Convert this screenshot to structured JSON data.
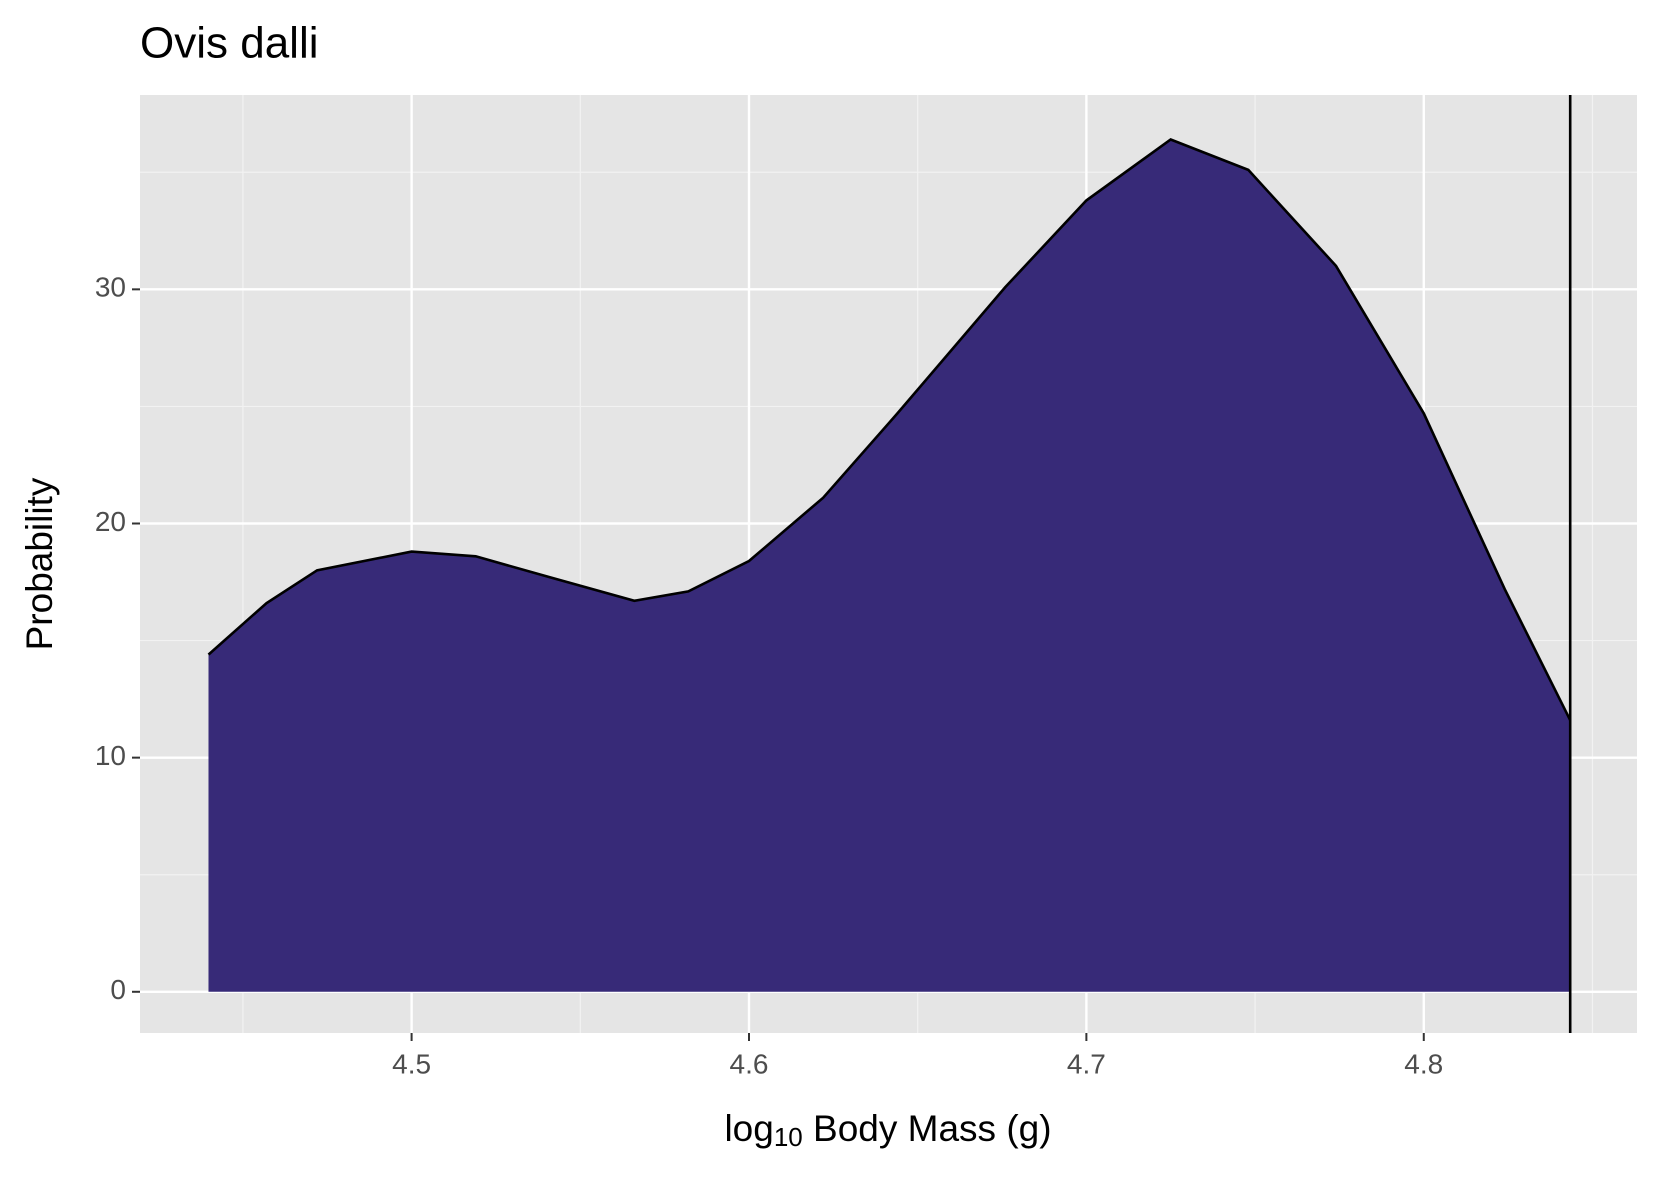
{
  "chart_data": {
    "type": "area",
    "title": "Ovis dalli",
    "x_label": {
      "base": "log",
      "subscript": "10",
      "rest": " Body Mass (g)"
    },
    "y_label": "Probability",
    "x": [
      4.4398,
      4.457,
      4.472,
      4.5,
      4.519,
      4.541,
      4.566,
      4.582,
      4.6,
      4.622,
      4.644,
      4.676,
      4.7,
      4.725,
      4.748,
      4.774,
      4.8,
      4.824,
      4.8434
    ],
    "series": [
      {
        "color": "#372a78",
        "values": [
          14.4,
          16.6,
          18.0,
          18.8,
          18.6,
          17.7,
          16.7,
          17.1,
          18.4,
          21.1,
          24.7,
          30.1,
          33.8,
          36.4,
          35.1,
          31.0,
          24.7,
          17.2,
          11.6
        ]
      }
    ],
    "vline": 4.8434,
    "xlim": [
      4.4195,
      4.8632
    ],
    "ylim": [
      -1.76,
      38.3
    ],
    "xticks": [
      4.5,
      4.6,
      4.7,
      4.8
    ],
    "yticks": [
      0,
      10,
      20,
      30
    ],
    "x_minor_ticks": [
      4.45,
      4.55,
      4.65,
      4.75,
      4.85
    ],
    "y_minor_ticks": [
      5,
      15,
      25,
      35
    ],
    "grid": true
  }
}
